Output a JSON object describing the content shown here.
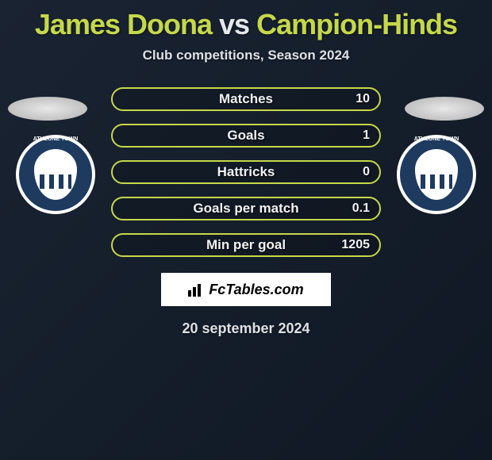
{
  "title": {
    "player1": "James Doona",
    "vs": "vs",
    "player2": "Campion-Hinds"
  },
  "subtitle": "Club competitions, Season 2024",
  "stats": [
    {
      "label": "Matches",
      "value_right": "10"
    },
    {
      "label": "Goals",
      "value_right": "1"
    },
    {
      "label": "Hattricks",
      "value_right": "0"
    },
    {
      "label": "Goals per match",
      "value_right": "0.1"
    },
    {
      "label": "Min per goal",
      "value_right": "1205"
    }
  ],
  "club_badge": {
    "name": "ATHLONE TOWN",
    "outer_color": "#1e3a5f",
    "shield_color": "#ffffff",
    "border_color": "#ffffff"
  },
  "logo": "FcTables.com",
  "date": "20 september 2024",
  "colors": {
    "accent": "#c5d84a",
    "text": "#f0f2f5",
    "bg_start": "#1a2332",
    "bg_end": "#0f1823"
  }
}
